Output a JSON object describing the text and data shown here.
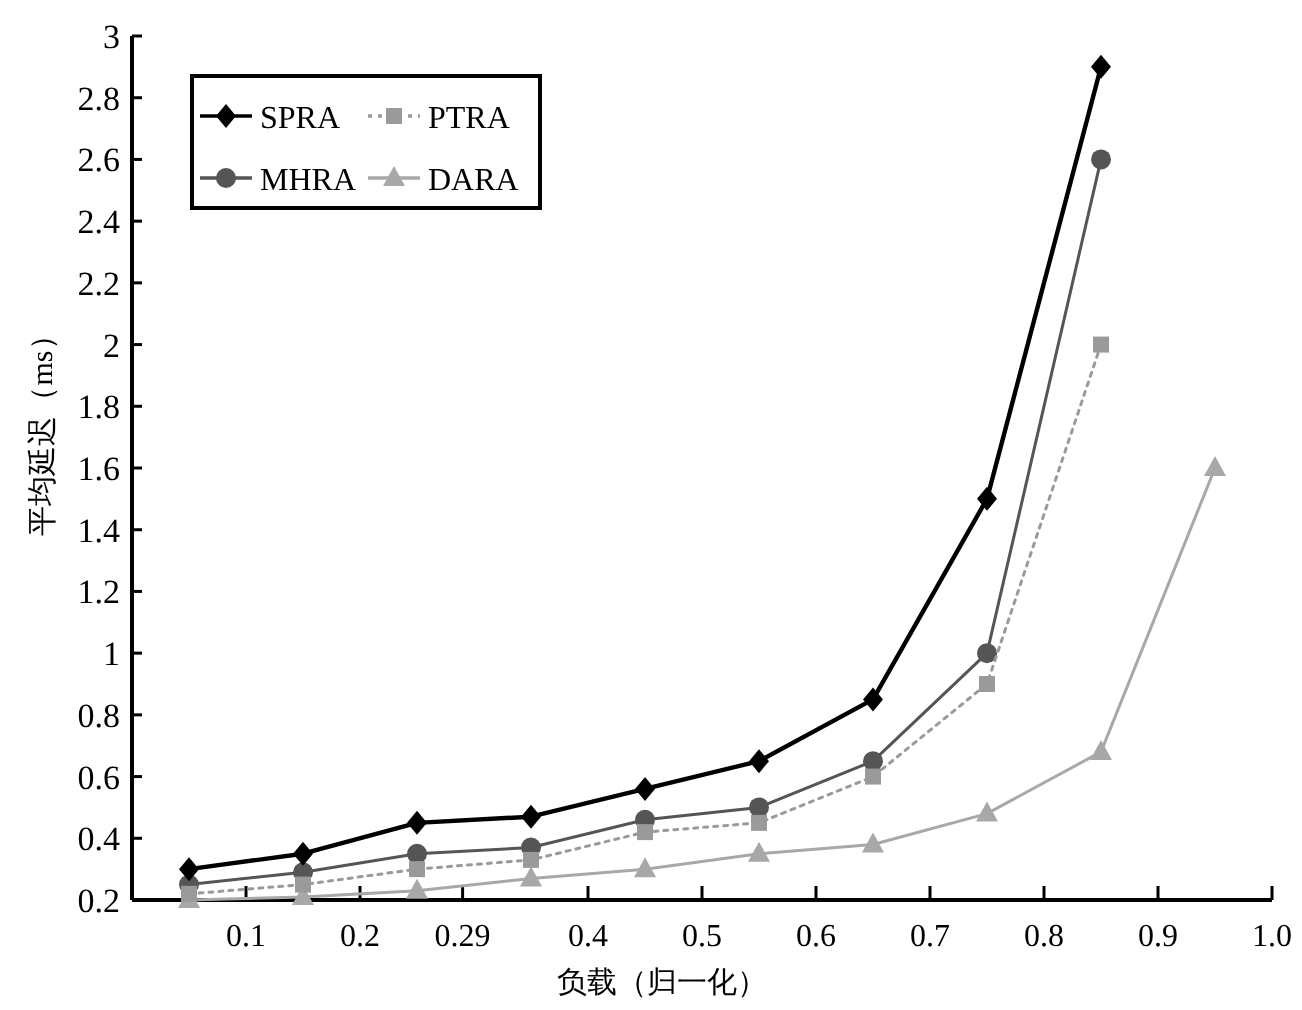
{
  "chart_data": {
    "type": "line",
    "xlabel": "负载（归一化）",
    "ylabel": "平均延迟（ms）",
    "x": [
      0.05,
      0.15,
      0.25,
      0.35,
      0.45,
      0.55,
      0.65,
      0.75,
      0.85,
      0.95
    ],
    "series": [
      {
        "name": "SPRA",
        "color": "#000000",
        "marker": "diamond",
        "line_style": "solid",
        "values": [
          0.3,
          0.35,
          0.45,
          0.47,
          0.56,
          0.65,
          0.85,
          1.5,
          2.9,
          null
        ]
      },
      {
        "name": "PTRA",
        "color": "#9a9a9a",
        "marker": "square",
        "line_style": "dotted",
        "values": [
          0.22,
          0.25,
          0.3,
          0.33,
          0.42,
          0.45,
          0.6,
          0.9,
          2.0,
          null
        ]
      },
      {
        "name": "MHRA",
        "color": "#555555",
        "marker": "circle",
        "line_style": "solid",
        "values": [
          0.25,
          0.29,
          0.35,
          0.37,
          0.46,
          0.5,
          0.65,
          1.0,
          2.6,
          null
        ]
      },
      {
        "name": "DARA",
        "color": "#a8a8a8",
        "marker": "triangle",
        "line_style": "solid",
        "values": [
          0.2,
          0.21,
          0.23,
          0.27,
          0.3,
          0.35,
          0.38,
          0.48,
          0.68,
          1.6
        ]
      }
    ],
    "xlim": [
      0,
      1.0
    ],
    "ylim": [
      0.2,
      3
    ],
    "xticks": [
      0.1,
      0.2,
      0.29,
      0.4,
      0.5,
      0.6,
      0.7,
      0.8,
      0.9,
      {
        "value": 1.0,
        "label": "1.0"
      }
    ],
    "yticks": [
      0.2,
      0.4,
      0.6,
      0.8,
      1,
      1.2,
      1.4,
      1.6,
      1.8,
      2,
      2.2,
      2.4,
      2.6,
      2.8,
      3
    ],
    "legend": "top left",
    "grid": false
  }
}
